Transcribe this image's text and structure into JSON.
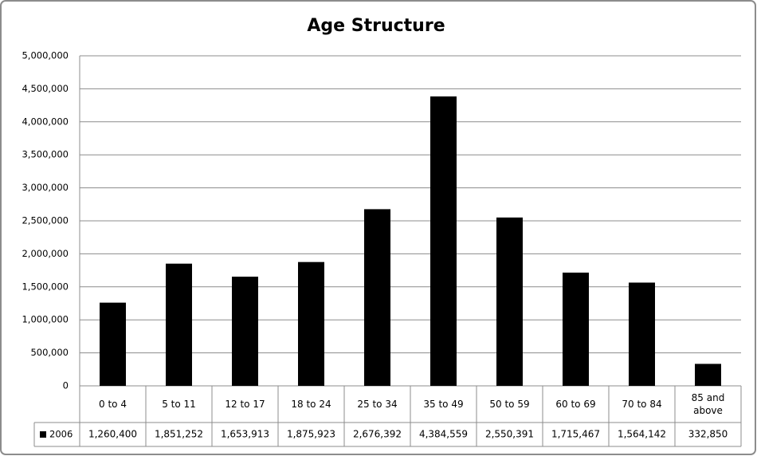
{
  "chart_data": {
    "type": "bar",
    "title": "Age Structure",
    "categories": [
      "0 to 4",
      "5 to 11",
      "12 to 17",
      "18 to 24",
      "25 to 34",
      "35 to 49",
      "50 to 59",
      "60 to 69",
      "70 to 84",
      "85 and above"
    ],
    "series": [
      {
        "name": "2006",
        "color": "#000000",
        "values": [
          1260400,
          1851252,
          1653913,
          1875923,
          2676392,
          4384559,
          2550391,
          1715467,
          1564142,
          332850
        ],
        "value_labels": [
          "1,260,400",
          "1,851,252",
          "1,653,913",
          "1,875,923",
          "2,676,392",
          "4,384,559",
          "2,550,391",
          "1,715,467",
          "1,564,142",
          "332,850"
        ]
      }
    ],
    "ylim": [
      0,
      5000000
    ],
    "yticks": [
      0,
      {
        "value": 500000,
        "label": "500,000"
      },
      {
        "value": 1000000,
        "label": "1,000,000"
      },
      {
        "value": 1500000,
        "label": "1,500,000"
      },
      {
        "value": 2000000,
        "label": "2,000,000"
      },
      {
        "value": 2500000,
        "label": "2,500,000"
      },
      {
        "value": 3000000,
        "label": "3,000,000"
      },
      {
        "value": 3500000,
        "label": "3,500,000"
      },
      {
        "value": 4000000,
        "label": "4,000,000"
      },
      {
        "value": 4500000,
        "label": "4,500,000"
      },
      {
        "value": 5000000,
        "label": "5,000,000"
      }
    ],
    "grid": true
  }
}
